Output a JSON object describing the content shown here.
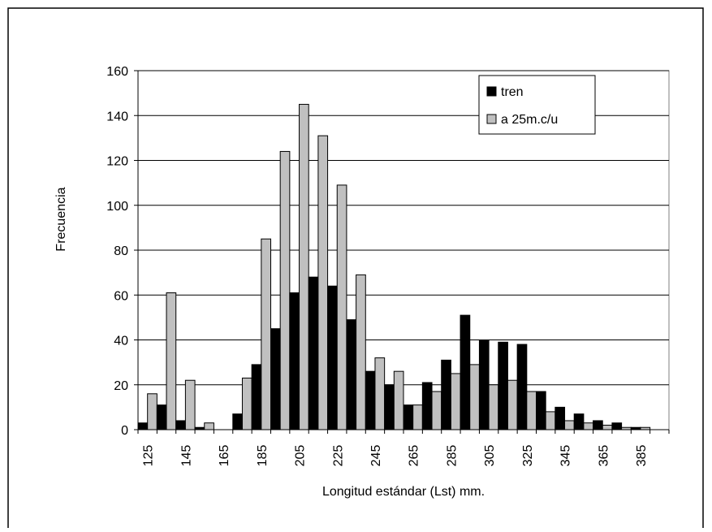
{
  "chart_data": {
    "type": "bar",
    "x_label": "Longitud estándar (Lst) mm.",
    "y_label": "Frecuencia",
    "categories": [
      "125",
      null,
      "145",
      null,
      "165",
      null,
      "185",
      null,
      "205",
      null,
      "225",
      null,
      "245",
      null,
      "265",
      null,
      "285",
      null,
      "305",
      null,
      "325",
      null,
      "345",
      null,
      "365",
      null,
      "385",
      null
    ],
    "series": [
      {
        "name": "tren",
        "color": "#000000",
        "values": [
          3,
          11,
          4,
          1,
          0,
          7,
          29,
          45,
          61,
          68,
          64,
          49,
          26,
          20,
          11,
          21,
          31,
          51,
          40,
          39,
          38,
          17,
          10,
          7,
          4,
          3,
          1,
          0
        ]
      },
      {
        "name": "a 25m.c/u",
        "color": "#c0c0c0",
        "values": [
          16,
          61,
          22,
          3,
          0,
          23,
          85,
          124,
          145,
          131,
          109,
          69,
          32,
          26,
          11,
          17,
          25,
          29,
          20,
          22,
          17,
          8,
          4,
          3,
          2,
          1,
          1,
          0
        ]
      }
    ],
    "ylim": [
      0,
      160
    ],
    "yticks": [
      0,
      20,
      40,
      60,
      80,
      100,
      120,
      140,
      160
    ],
    "grid": true,
    "legend": "top-right"
  }
}
